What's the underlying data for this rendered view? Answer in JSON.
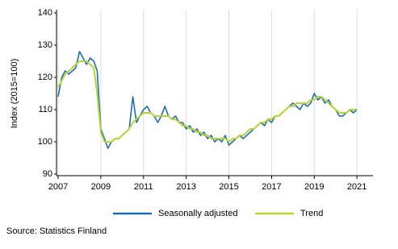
{
  "chart_data": {
    "type": "line",
    "ylabel": "Index (2015=100)",
    "source": "Source: Statistics Finland",
    "x": [
      2007,
      2007.17,
      2007.33,
      2007.5,
      2007.67,
      2007.83,
      2008,
      2008.17,
      2008.33,
      2008.5,
      2008.67,
      2008.83,
      2009,
      2009.17,
      2009.33,
      2009.5,
      2009.67,
      2009.83,
      2010,
      2010.17,
      2010.33,
      2010.5,
      2010.67,
      2010.83,
      2011,
      2011.17,
      2011.33,
      2011.5,
      2011.67,
      2011.83,
      2012,
      2012.17,
      2012.33,
      2012.5,
      2012.67,
      2012.83,
      2013,
      2013.17,
      2013.33,
      2013.5,
      2013.67,
      2013.83,
      2014,
      2014.17,
      2014.33,
      2014.5,
      2014.67,
      2014.83,
      2015,
      2015.17,
      2015.33,
      2015.5,
      2015.67,
      2015.83,
      2016,
      2016.17,
      2016.33,
      2016.5,
      2016.67,
      2016.83,
      2017,
      2017.17,
      2017.33,
      2017.5,
      2017.67,
      2017.83,
      2018,
      2018.17,
      2018.33,
      2018.5,
      2018.67,
      2018.83,
      2019,
      2019.17,
      2019.33,
      2019.5,
      2019.67,
      2019.83,
      2020,
      2020.17,
      2020.33,
      2020.5,
      2020.67,
      2020.83,
      2021
    ],
    "series": [
      {
        "name": "Seasonally adjusted",
        "color": "#1f6db1",
        "values": [
          114,
          120,
          122,
          121,
          122,
          123,
          128,
          126,
          124,
          126,
          125,
          122,
          104,
          101,
          98,
          100,
          101,
          101,
          102,
          103,
          104,
          114,
          106,
          108,
          110,
          111,
          109,
          108,
          106,
          108,
          111,
          108,
          107,
          108,
          106,
          106,
          104,
          105,
          103,
          104,
          102,
          103,
          101,
          102,
          100,
          101,
          100,
          102,
          99,
          100,
          101,
          102,
          101,
          102,
          103,
          104,
          105,
          106,
          105,
          107,
          106,
          108,
          108,
          109,
          110,
          111,
          112,
          111,
          110,
          112,
          111,
          112,
          115,
          113,
          114,
          112,
          113,
          111,
          110,
          108,
          108,
          109,
          110,
          109,
          110
        ]
      },
      {
        "name": "Trend",
        "color": "#b6d530",
        "values": [
          117,
          119,
          121,
          122,
          123,
          124,
          125,
          125,
          125,
          124,
          123,
          115,
          103,
          100,
          100,
          100,
          101,
          101,
          102,
          103,
          104,
          106,
          107,
          108,
          109,
          109,
          109,
          108,
          108,
          108,
          108,
          108,
          107,
          107,
          106,
          105,
          105,
          104,
          104,
          103,
          103,
          102,
          102,
          101,
          101,
          101,
          101,
          101,
          100,
          101,
          101,
          102,
          102,
          103,
          104,
          104,
          105,
          106,
          106,
          107,
          107,
          108,
          108,
          109,
          110,
          111,
          111,
          112,
          112,
          112,
          112,
          113,
          113,
          114,
          114,
          113,
          112,
          111,
          110,
          109,
          109,
          109,
          110,
          110,
          110
        ]
      }
    ],
    "xlim": [
      2007,
      2021.75
    ],
    "xticks": [
      2007,
      2009,
      2011,
      2013,
      2015,
      2017,
      2019,
      2021
    ],
    "ylim": [
      90,
      140
    ],
    "yticks": [
      90,
      100,
      110,
      120,
      130,
      140
    ],
    "grid": "x",
    "legend": "bottom"
  }
}
